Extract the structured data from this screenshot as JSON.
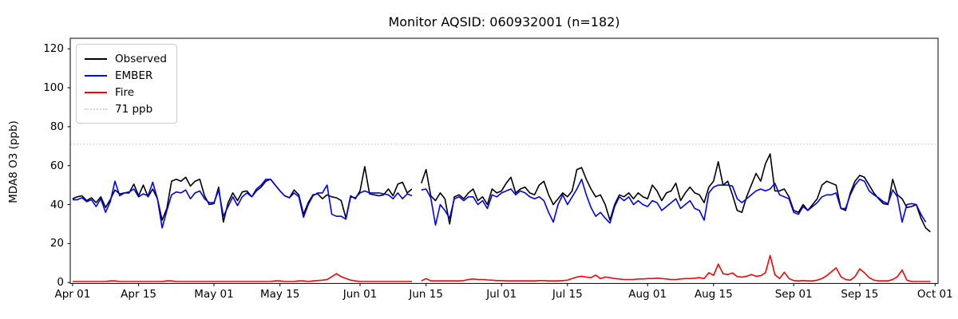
{
  "title": "Monitor AQSID: 060932001 (n=182)",
  "y_axis": {
    "label": "MDA8 O3 (ppb)",
    "ticks": [
      0,
      20,
      40,
      60,
      80,
      100,
      120
    ]
  },
  "x_axis": {
    "ticks": [
      {
        "label": "Apr 01",
        "day": 0
      },
      {
        "label": "Apr 15",
        "day": 14
      },
      {
        "label": "May 01",
        "day": 30
      },
      {
        "label": "May 15",
        "day": 44
      },
      {
        "label": "Jun 01",
        "day": 61
      },
      {
        "label": "Jun 15",
        "day": 75
      },
      {
        "label": "Jul 01",
        "day": 91
      },
      {
        "label": "Jul 15",
        "day": 105
      },
      {
        "label": "Aug 01",
        "day": 122
      },
      {
        "label": "Aug 15",
        "day": 136
      },
      {
        "label": "Sep 01",
        "day": 153
      },
      {
        "label": "Sep 15",
        "day": 167
      },
      {
        "label": "Oct 01",
        "day": 183
      }
    ]
  },
  "legend": [
    {
      "label": "Observed",
      "color": "#000000",
      "style": "solid"
    },
    {
      "label": "EMBER",
      "color": "#0000ff",
      "style": "solid"
    },
    {
      "label": "Fire",
      "color": "#ff0000",
      "style": "solid"
    },
    {
      "label": "71 ppb",
      "color": "#d3d3d3",
      "style": "dotted"
    }
  ],
  "chart_data": {
    "type": "line",
    "title": "Monitor AQSID: 060932001 (n=182)",
    "xlabel": "",
    "ylabel": "MDA8 O3 (ppb)",
    "x_unit": "daily values, day index 0 = Apr 01, last index 182 = Sep 30",
    "x_range_labels": [
      "Apr 01",
      "Oct 01"
    ],
    "ylim": [
      0,
      125
    ],
    "grid": false,
    "legend_position": "upper left",
    "missing_days": [
      "Jun 13"
    ],
    "reference_line": {
      "label": "71 ppb",
      "value": 71,
      "color": "#d3d3d3",
      "style": "dotted"
    },
    "series": [
      {
        "name": "Observed",
        "color": "#000000",
        "values": [
          43,
          44,
          44.5,
          42,
          43.5,
          41,
          44,
          38.5,
          42.5,
          47.5,
          45.5,
          46,
          46,
          50.5,
          44.5,
          50,
          44,
          48,
          43,
          32,
          38,
          52,
          53,
          52,
          54,
          49.5,
          52,
          53,
          44.5,
          40,
          40.5,
          49,
          31,
          41,
          46,
          42,
          46.5,
          47,
          44,
          47,
          49,
          52,
          53,
          50,
          47,
          44.5,
          43.5,
          47.5,
          45,
          35,
          41,
          45,
          45.5,
          43,
          45,
          44,
          43.5,
          42,
          33,
          44.5,
          43,
          47,
          59.5,
          45.5,
          45,
          44.5,
          45,
          48,
          44.5,
          50.5,
          51.5,
          46,
          48,
          null,
          51,
          58,
          44.5,
          42,
          46,
          43,
          30,
          44,
          45,
          43,
          46,
          48,
          42,
          44,
          40,
          48,
          46,
          47,
          51,
          54,
          46,
          48,
          49,
          46,
          45,
          50,
          52,
          45,
          40,
          43,
          46,
          44,
          47,
          58,
          59,
          53,
          48,
          44,
          45,
          40,
          32,
          40,
          45,
          44,
          46,
          43,
          46,
          44,
          43,
          50,
          47,
          42,
          46,
          47,
          51,
          42,
          46,
          49,
          46,
          45,
          41,
          49,
          52,
          62,
          50,
          52,
          45,
          37,
          36,
          44,
          50,
          56,
          52,
          61,
          66,
          47,
          47,
          48,
          44,
          37,
          36,
          40,
          37,
          40,
          43,
          50,
          52,
          51,
          50,
          38,
          37,
          46,
          52,
          55,
          54,
          50,
          46,
          43,
          40.5,
          40,
          53,
          45,
          43,
          38.5,
          39,
          40,
          33,
          28,
          26
        ]
      },
      {
        "name": "EMBER",
        "color": "#0000ff",
        "values": [
          42.5,
          42.5,
          43.5,
          41.5,
          42.5,
          39,
          43,
          36,
          41.5,
          52,
          44.5,
          46,
          46.5,
          48,
          44,
          45.5,
          44.5,
          51.5,
          43,
          28,
          37,
          45,
          46.5,
          46,
          47.5,
          43,
          46,
          47,
          43,
          41,
          41,
          47.5,
          34,
          39,
          44,
          39.5,
          44,
          46,
          44,
          48,
          50,
          53,
          53,
          50,
          47,
          44.5,
          43.5,
          46,
          44,
          33.5,
          40,
          44.5,
          46,
          46,
          50,
          35,
          34,
          34,
          32.5,
          44,
          43.5,
          46,
          47,
          46,
          46,
          46,
          45.5,
          45,
          43,
          46,
          43,
          45.5,
          44.5,
          null,
          47.5,
          48,
          43.5,
          29.5,
          40,
          37,
          33,
          43,
          44,
          42,
          44,
          44,
          40,
          42,
          38,
          45,
          44,
          46,
          47,
          48,
          45,
          47,
          46,
          44,
          43,
          44,
          42,
          36,
          31,
          40,
          45,
          40,
          44,
          48,
          53,
          45,
          38.5,
          34,
          36,
          33,
          30.5,
          39,
          44,
          42,
          44,
          40,
          42,
          40,
          39,
          42,
          41,
          37,
          39,
          41,
          43,
          38,
          40,
          42,
          38,
          37,
          32,
          46,
          49,
          50,
          50,
          50,
          49.5,
          43,
          41,
          43,
          45,
          47,
          48,
          47,
          48,
          51,
          45,
          44,
          43,
          36,
          35,
          39,
          37,
          39,
          41,
          44,
          45,
          45,
          46,
          38,
          38,
          45,
          50,
          53,
          52,
          47,
          45,
          43.5,
          41.5,
          40.5,
          47.5,
          44,
          31,
          40,
          40.5,
          40,
          35,
          31,
          null
        ]
      },
      {
        "name": "Fire",
        "color": "#ff0000",
        "values": [
          0.5,
          0.5,
          0.5,
          0.5,
          0.5,
          0.5,
          0.5,
          0.5,
          0.8,
          0.8,
          0.5,
          0.5,
          0.5,
          0.5,
          0.5,
          0.5,
          0.5,
          0.5,
          0.5,
          0.5,
          0.8,
          0.8,
          0.5,
          0.5,
          0.5,
          0.5,
          0.5,
          0.5,
          0.5,
          0.5,
          0.5,
          0.5,
          0.5,
          0.5,
          0.5,
          0.5,
          0.5,
          0.5,
          0.5,
          0.5,
          0.5,
          0.5,
          0.5,
          0.8,
          0.8,
          0.5,
          0.5,
          0.5,
          0.8,
          0.8,
          0.5,
          0.8,
          1,
          1.2,
          1.5,
          3,
          4.5,
          3,
          2,
          1.2,
          0.8,
          0.5,
          0.5,
          0.5,
          0.5,
          0.5,
          0.5,
          0.5,
          0.5,
          0.5,
          0.5,
          0.5,
          0.5,
          null,
          0.8,
          2,
          0.8,
          0.8,
          0.8,
          0.8,
          0.8,
          0.8,
          0.8,
          1,
          1.5,
          1.8,
          1.5,
          1.5,
          1.3,
          1.2,
          1,
          1,
          0.8,
          0.8,
          0.8,
          0.8,
          0.8,
          0.8,
          0.8,
          1,
          1,
          0.8,
          0.8,
          0.8,
          1,
          1.2,
          2,
          2.8,
          3.2,
          2.8,
          2.5,
          3.8,
          2,
          2.8,
          2.5,
          2,
          1.8,
          1.5,
          1.5,
          1.5,
          1.8,
          1.8,
          2,
          2,
          2.2,
          2,
          1.8,
          1.5,
          1.5,
          1.8,
          2,
          2,
          2.2,
          2.5,
          2,
          5,
          3.7,
          9.4,
          4.5,
          4.1,
          4.9,
          3,
          2.8,
          3.2,
          4.1,
          3.2,
          3.5,
          5,
          13.9,
          4,
          2,
          5.3,
          2,
          1,
          0.8,
          1,
          0.8,
          0.8,
          1.2,
          2,
          3.5,
          5.5,
          7.5,
          3,
          1.5,
          1.2,
          3,
          7,
          5,
          2.5,
          1.2,
          0.8,
          0.8,
          0.8,
          1.5,
          3,
          6.4,
          1.2,
          0.5,
          0.5,
          0.5,
          0.5,
          0.5
        ]
      }
    ]
  }
}
